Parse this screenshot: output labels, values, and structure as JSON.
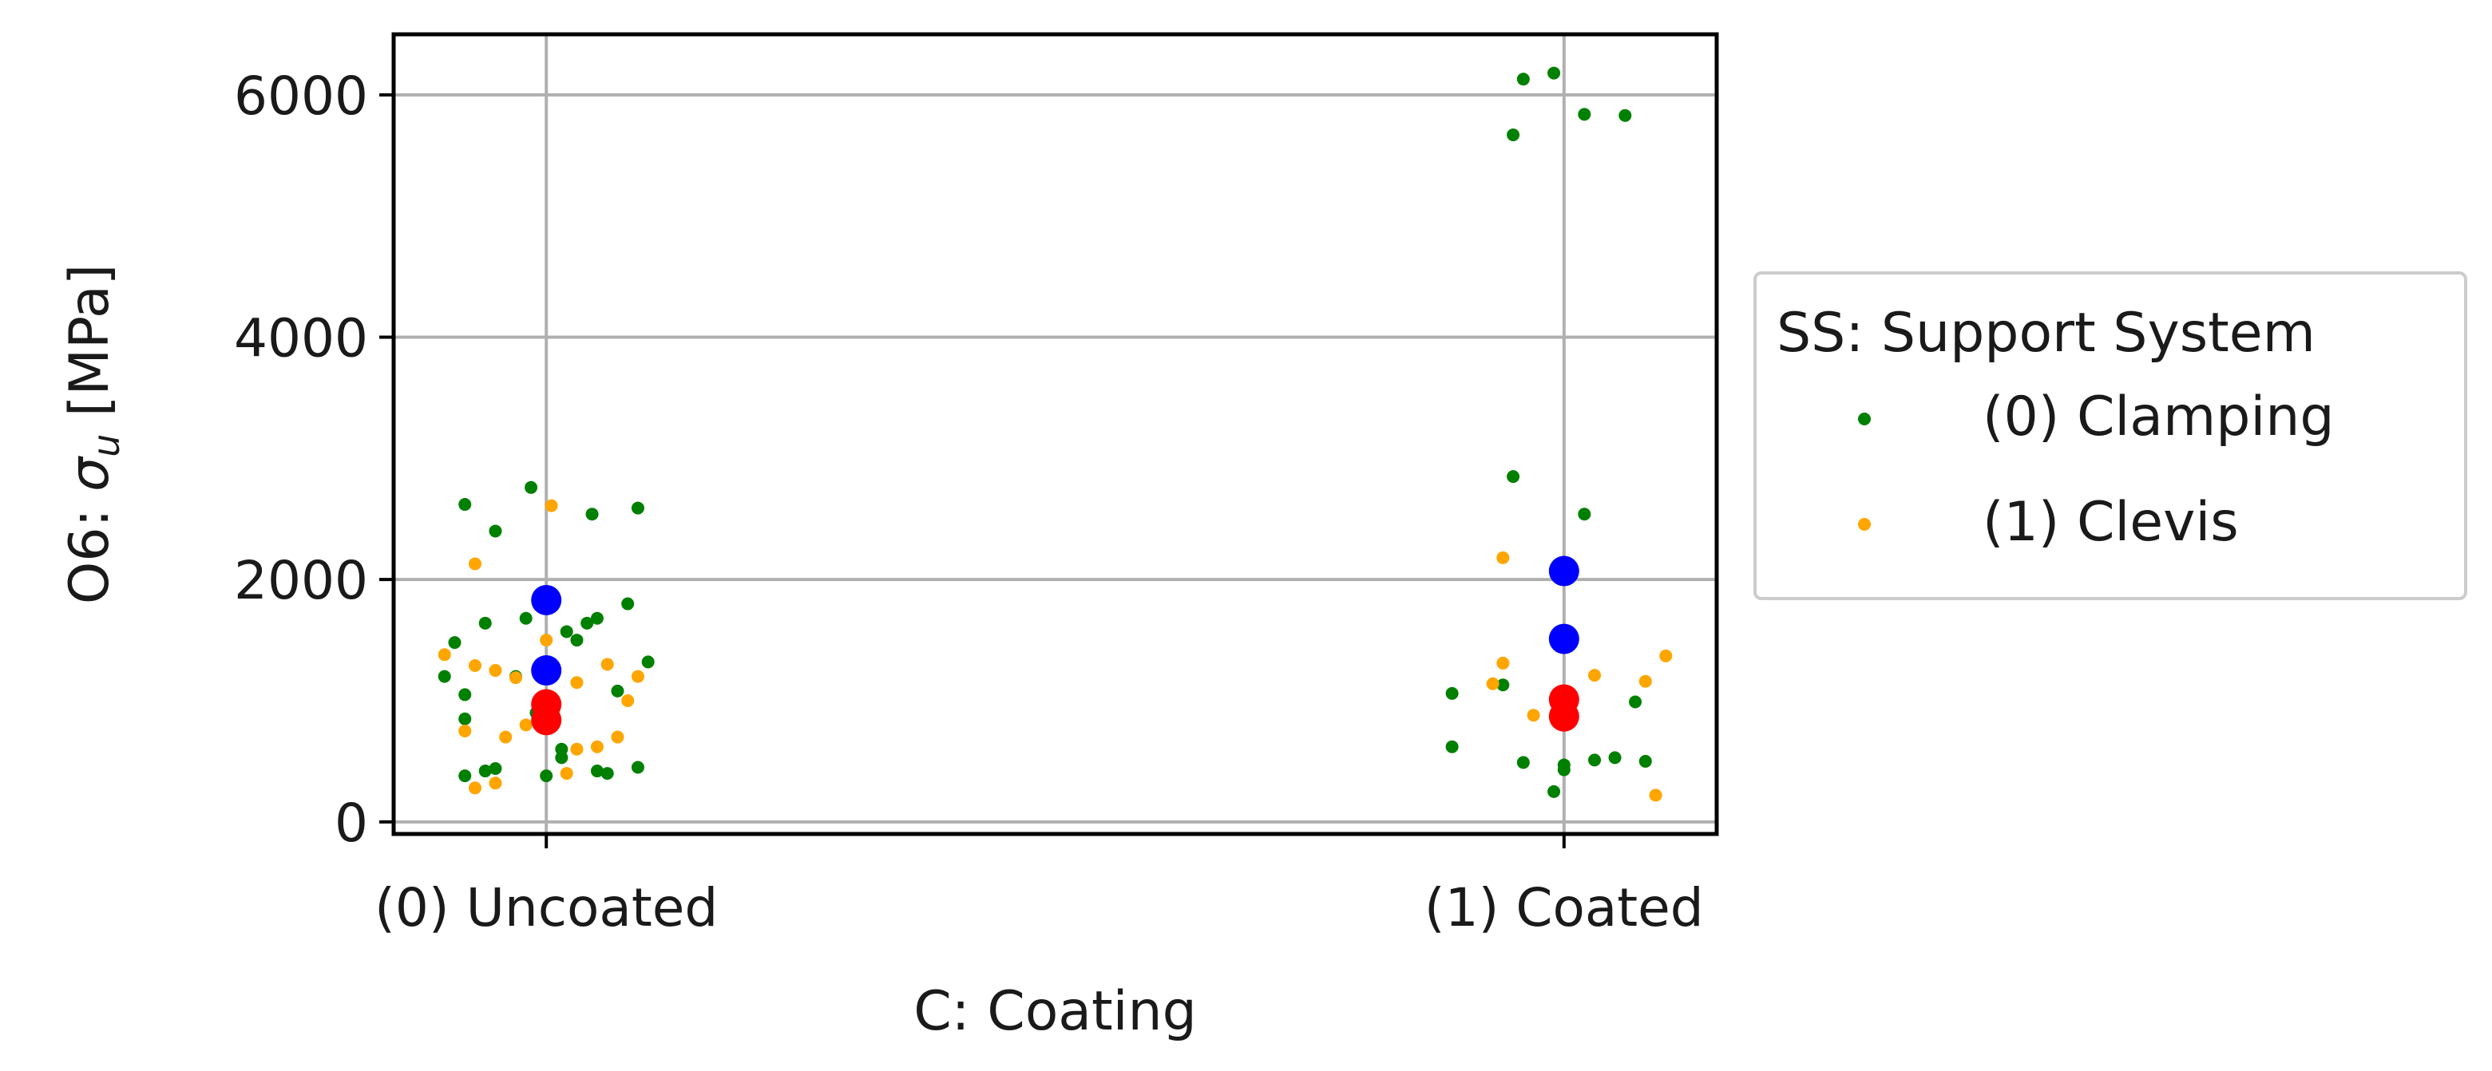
{
  "chart_data": {
    "type": "scatter",
    "title": "",
    "xlabel": "C: Coating",
    "ylabel": {
      "prefix": "O6: ",
      "symbol": "σ",
      "subscript": "u",
      "unit": " [MPa]"
    },
    "categories": [
      "(0) Uncoated",
      "(1) Coated"
    ],
    "xlim": [
      -0.15,
      1.15
    ],
    "ylim": [
      -100,
      6500
    ],
    "yticks": [
      0,
      2000,
      4000,
      6000
    ],
    "grid": true,
    "legend": {
      "title": "SS: Support System",
      "placement": "right-outside",
      "entries": [
        {
          "label": "(0) Clamping",
          "color": "#008000"
        },
        {
          "label": "(1) Clevis",
          "color": "#ffa500"
        }
      ]
    },
    "series": [
      {
        "name": "(0) Clamping",
        "color": "#008000",
        "points": [
          {
            "x": -0.08,
            "y": 2620
          },
          {
            "x": -0.05,
            "y": 2400
          },
          {
            "x": -0.015,
            "y": 2760
          },
          {
            "x": 0.045,
            "y": 2540
          },
          {
            "x": 0.09,
            "y": 2590
          },
          {
            "x": -0.09,
            "y": 1480
          },
          {
            "x": -0.06,
            "y": 1640
          },
          {
            "x": -0.02,
            "y": 1680
          },
          {
            "x": 0.02,
            "y": 1570
          },
          {
            "x": 0.04,
            "y": 1640
          },
          {
            "x": 0.05,
            "y": 1680
          },
          {
            "x": 0.08,
            "y": 1800
          },
          {
            "x": 0.1,
            "y": 1320
          },
          {
            "x": -0.1,
            "y": 1200
          },
          {
            "x": -0.08,
            "y": 1050
          },
          {
            "x": -0.08,
            "y": 850
          },
          {
            "x": -0.03,
            "y": 1200
          },
          {
            "x": 0.0,
            "y": 1000
          },
          {
            "x": -0.01,
            "y": 900
          },
          {
            "x": 0.015,
            "y": 600
          },
          {
            "x": 0.015,
            "y": 530
          },
          {
            "x": -0.08,
            "y": 380
          },
          {
            "x": -0.06,
            "y": 420
          },
          {
            "x": -0.05,
            "y": 440
          },
          {
            "x": 0.0,
            "y": 380
          },
          {
            "x": 0.05,
            "y": 420
          },
          {
            "x": 0.06,
            "y": 400
          },
          {
            "x": 0.09,
            "y": 450
          },
          {
            "x": 0.07,
            "y": 1080
          },
          {
            "x": 0.03,
            "y": 1500
          },
          {
            "x": 0.95,
            "y": 5670
          },
          {
            "x": 0.96,
            "y": 6130
          },
          {
            "x": 0.99,
            "y": 6180
          },
          {
            "x": 1.02,
            "y": 5840
          },
          {
            "x": 1.06,
            "y": 5830
          },
          {
            "x": 0.95,
            "y": 2850
          },
          {
            "x": 1.02,
            "y": 2540
          },
          {
            "x": 0.89,
            "y": 1060
          },
          {
            "x": 0.94,
            "y": 1130
          },
          {
            "x": 1.07,
            "y": 990
          },
          {
            "x": 0.89,
            "y": 620
          },
          {
            "x": 0.96,
            "y": 490
          },
          {
            "x": 1.0,
            "y": 470
          },
          {
            "x": 1.03,
            "y": 510
          },
          {
            "x": 1.05,
            "y": 530
          },
          {
            "x": 1.08,
            "y": 500
          },
          {
            "x": 0.99,
            "y": 250
          },
          {
            "x": 1.0,
            "y": 430
          }
        ]
      },
      {
        "name": "(1) Clevis",
        "color": "#ffa500",
        "points": [
          {
            "x": -0.07,
            "y": 2130
          },
          {
            "x": 0.005,
            "y": 2610
          },
          {
            "x": -0.1,
            "y": 1380
          },
          {
            "x": -0.07,
            "y": 1290
          },
          {
            "x": -0.05,
            "y": 1250
          },
          {
            "x": -0.03,
            "y": 1190
          },
          {
            "x": -0.08,
            "y": 750
          },
          {
            "x": -0.04,
            "y": 700
          },
          {
            "x": -0.02,
            "y": 800
          },
          {
            "x": 0.0,
            "y": 1500
          },
          {
            "x": 0.03,
            "y": 1150
          },
          {
            "x": 0.06,
            "y": 1300
          },
          {
            "x": 0.08,
            "y": 1000
          },
          {
            "x": 0.09,
            "y": 1200
          },
          {
            "x": 0.03,
            "y": 600
          },
          {
            "x": 0.05,
            "y": 620
          },
          {
            "x": 0.07,
            "y": 700
          },
          {
            "x": -0.07,
            "y": 280
          },
          {
            "x": -0.05,
            "y": 320
          },
          {
            "x": 0.02,
            "y": 400
          },
          {
            "x": 0.94,
            "y": 2180
          },
          {
            "x": 0.94,
            "y": 1310
          },
          {
            "x": 0.93,
            "y": 1140
          },
          {
            "x": 0.97,
            "y": 880
          },
          {
            "x": 1.0,
            "y": 1020
          },
          {
            "x": 1.03,
            "y": 1210
          },
          {
            "x": 1.08,
            "y": 1160
          },
          {
            "x": 1.1,
            "y": 1370
          },
          {
            "x": 1.09,
            "y": 220
          }
        ]
      },
      {
        "name": "",
        "color": "#0000ff",
        "points": [
          {
            "x": 0.0,
            "y": 1830
          },
          {
            "x": 0.0,
            "y": 1250
          },
          {
            "x": 1.0,
            "y": 2070
          },
          {
            "x": 1.0,
            "y": 1510
          }
        ]
      },
      {
        "name": "",
        "color": "#ff0000",
        "points": [
          {
            "x": 0.0,
            "y": 970
          },
          {
            "x": 0.0,
            "y": 840
          },
          {
            "x": 1.0,
            "y": 1010
          },
          {
            "x": 1.0,
            "y": 870
          }
        ]
      }
    ]
  }
}
